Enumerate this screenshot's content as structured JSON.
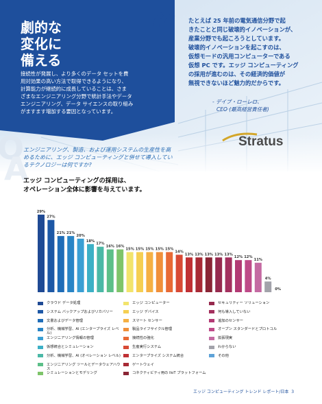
{
  "panel": {
    "title_lines": [
      "劇的な",
      "変化に",
      "備える"
    ],
    "body_lines": [
      "接続性が発展し、より多くのデータ セットを費",
      "用対効果の高い方法で取得できるようになり、",
      "計算能力が継続的に成長していることは、さま",
      "ざまなエンジニアリング分野で統計手法やデータ",
      "エンジニアリング、データ サイエンスの取り組み",
      "がますます増加する要因となっています。"
    ]
  },
  "quote": {
    "lines": [
      "たとえば 25 年前の電気通信分野で起",
      "きたことと同じ破壊的イノベーションが、",
      "産業分野でも起ころうとしています。",
      "破壊的イノベーションを起こすのは、",
      "仮想モードの汎用コンピューターである",
      "仮想 PC です。エッジ コンピューティング",
      "の採用が進むのは、その経済的価値が",
      "無視できないほど魅力的だからです。"
    ],
    "author": "- デイブ・ローレロ、",
    "role": "CEO (最高経営責任者)",
    "logo": "Stratus"
  },
  "qa": {
    "q_letter": "Q",
    "a_letter": "A",
    "question_lines": [
      "エンジニアリング、製造、および運用システムの生産性を高",
      "めるために、エッジ コンピューティングと併せて導入してい",
      "るテクノロジーは何ですか?"
    ],
    "answer_lines": [
      "エッジ コンピューティングの採用は、",
      "オペレーション全体に影響を与えています。"
    ]
  },
  "chart_data": {
    "type": "bar",
    "categories": [
      "クラウド データ処理",
      "システム バックアップおよびリカバリー",
      "文書およびデータ管理",
      "分析、機械学習、AI (エンタープライズ レベル)",
      "エンジニアリング情報の管理",
      "仮想統合とシミュレーション",
      "分析、機械学習、AI (オペレーション レベル)",
      "エンジニアリング ツールとデータウェアハウス",
      "シミュレーションとモデリング",
      "エッジ コンピューター",
      "エッジ デバイス",
      "スマート センサー",
      "製品ライフサイクル管理",
      "接続性の強化",
      "生産実行システム",
      "エンタープライズ システム統合",
      "ゲートウェイ",
      "コネクティビティ用の IIoT プラットフォーム",
      "セキュリティー ソリューション",
      "何も導入していない",
      "追加のセンサー",
      "オープン スタンダードとプロトコル",
      "拡張現実",
      "わからない",
      "その他"
    ],
    "values": [
      29,
      27,
      21,
      21,
      20,
      18,
      17,
      16,
      16,
      15,
      15,
      15,
      15,
      15,
      14,
      13,
      13,
      13,
      13,
      13,
      12,
      12,
      11,
      4,
      0
    ],
    "value_labels": [
      "29%",
      "27%",
      "21%",
      "21%",
      "20%",
      "18%",
      "17%",
      "16%",
      "16%",
      "15%",
      "15%",
      "15%",
      "15%",
      "15%",
      "14%",
      "13%",
      "13%",
      "13%",
      "13%",
      "13%",
      "12%",
      "12%",
      "11%",
      "4%",
      "0%"
    ],
    "colors": [
      "#1f4a94",
      "#1d58a6",
      "#1f6db8",
      "#2985c6",
      "#3a9fd4",
      "#3cb0c6",
      "#4ab8a6",
      "#5cbf88",
      "#7ec46a",
      "#f2e46c",
      "#f5cf52",
      "#f5b043",
      "#f0903a",
      "#e86a35",
      "#d84a35",
      "#c03034",
      "#a82a35",
      "#8a2535",
      "#962a4e",
      "#a3305e",
      "#b23a74",
      "#be4a88",
      "#c46aa2",
      "#a2a2aa",
      "#5ea2d8"
    ]
  },
  "footer": {
    "text": "エッジ コンピューティング トレンド レポート/日本",
    "page": "3"
  }
}
